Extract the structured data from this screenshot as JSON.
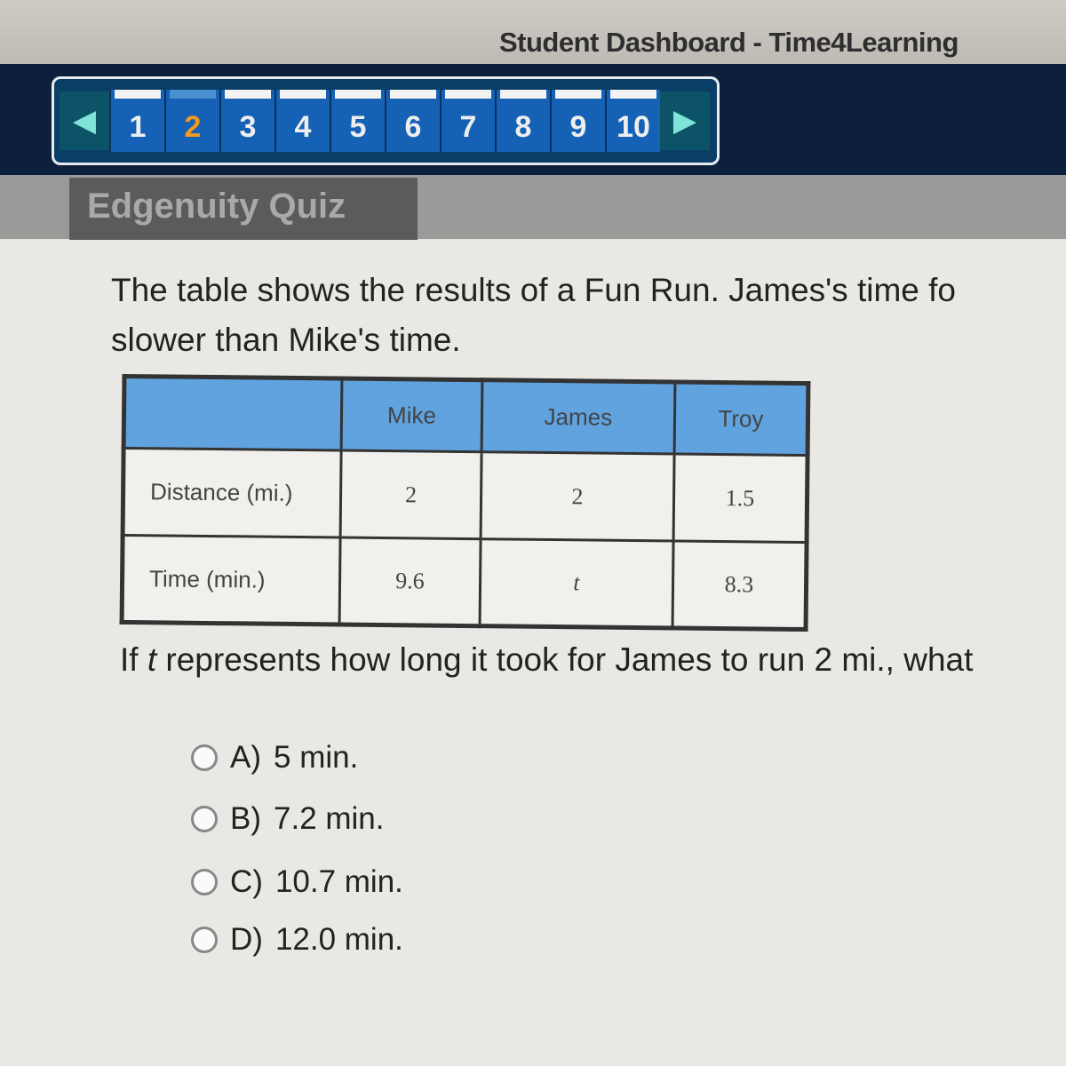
{
  "window": {
    "title": "Student Dashboard - Time4Learning"
  },
  "pager": {
    "prev_icon": "left-triangle",
    "next_icon": "right-triangle",
    "pages": [
      "1",
      "2",
      "3",
      "4",
      "5",
      "6",
      "7",
      "8",
      "9",
      "10"
    ],
    "current": "2",
    "current_color": "#f39a1c"
  },
  "quiz": {
    "header": "Edgenuity Quiz",
    "prompt_line1": "The table shows the results of a Fun Run. James's time fo",
    "prompt_line2": "slower than Mike's time.",
    "table": {
      "headers": [
        "",
        "Mike",
        "James",
        "Troy"
      ],
      "rows": [
        [
          "Distance (mi.)",
          "2",
          "2",
          "1.5"
        ],
        [
          "Time (min.)",
          "9.6",
          "t",
          "8.3"
        ]
      ]
    },
    "question_prefix": "If ",
    "question_var": "t",
    "question_rest": " represents how long it took for James to run 2 mi., what",
    "options": [
      {
        "letter": "A)",
        "text": "5 min."
      },
      {
        "letter": "B)",
        "text": "7.2 min."
      },
      {
        "letter": "C)",
        "text": "10.7 min."
      },
      {
        "letter": "D)",
        "text": "12.0 min."
      }
    ]
  },
  "colors": {
    "header_blue": "#61a3df",
    "nav_dark": "#0c1f3b",
    "page_blue": "#1461b5"
  }
}
